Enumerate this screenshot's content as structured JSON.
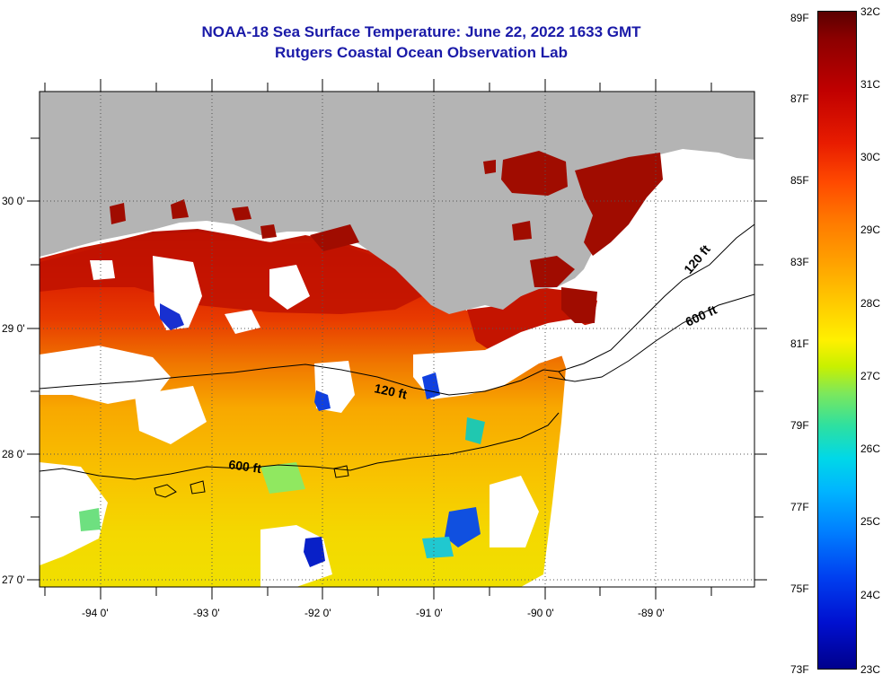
{
  "header": {
    "title_line1": "NOAA-18 Sea Surface Temperature:  June 22, 2022 1633 GMT",
    "title_line2": "Rutgers Coastal Ocean Observation Lab"
  },
  "axes": {
    "x_ticks": [
      "-94 0'",
      "-93 0'",
      "-92 0'",
      "-91 0'",
      "-90 0'",
      "-89 0'"
    ],
    "y_ticks": [
      "30 0'",
      "29 0'",
      "28 0'",
      "27 0'"
    ]
  },
  "contours": {
    "west_120": "120 ft",
    "west_600": "600 ft",
    "east_120": "120 ft",
    "east_600": "600 ft"
  },
  "colorbar": {
    "fahrenheit": [
      "89F",
      "87F",
      "85F",
      "83F",
      "81F",
      "79F",
      "77F",
      "75F",
      "73F"
    ],
    "celsius": [
      "32C",
      "31C",
      "30C",
      "29C",
      "28C",
      "27C",
      "26C",
      "25C",
      "24C",
      "23C"
    ]
  },
  "colors": {
    "land": "#b4b4b4",
    "title": "#1a1aa8",
    "no_data": "#ffffff"
  }
}
